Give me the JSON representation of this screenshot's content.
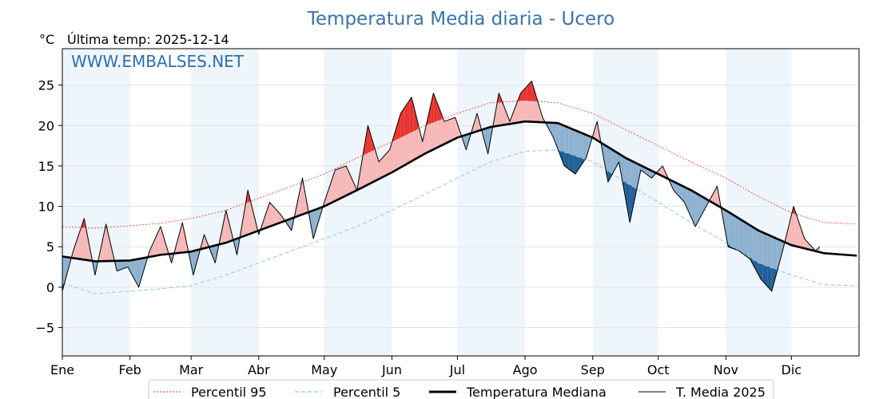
{
  "chart_data": {
    "type": "line",
    "title": "Temperatura Media diaria - Ucero",
    "unit_label": "°C",
    "last_temp_label": "Última temp: 2025-12-14",
    "watermark": "WWW.EMBALSES.NET",
    "ylim": [
      -8.5,
      29.5
    ],
    "yticks": [
      -5,
      0,
      5,
      10,
      15,
      20,
      25
    ],
    "months": [
      "Ene",
      "Feb",
      "Mar",
      "Abr",
      "May",
      "Jun",
      "Jul",
      "Ago",
      "Sep",
      "Oct",
      "Nov",
      "Dic"
    ],
    "grid": true,
    "legend_position": "bottom",
    "colors": {
      "p95": "#e8322e",
      "p5": "#8ec9dd",
      "median": "#000000",
      "year": "#000000",
      "above_fill": "#f6b7b7",
      "above_extreme": "#e8322e",
      "below_fill": "#8cb0cf",
      "below_extreme": "#1f5f96",
      "month_shade": "#eef5fb"
    },
    "series": [
      {
        "name": "Percentil 95",
        "key": "p95",
        "x": [
          0,
          15,
          31,
          45,
          59,
          75,
          90,
          105,
          120,
          135,
          151,
          166,
          181,
          196,
          212,
          227,
          243,
          258,
          273,
          288,
          304,
          319,
          334,
          349,
          364
        ],
        "values": [
          7.5,
          7.3,
          7.6,
          7.9,
          8.5,
          9.5,
          11,
          12.5,
          14,
          16,
          18,
          20,
          21.5,
          22.8,
          23.1,
          22.8,
          21.5,
          19.5,
          17.5,
          15.5,
          13.5,
          11.2,
          9.2,
          8,
          7.8
        ]
      },
      {
        "name": "Percentil 5",
        "key": "p5",
        "x": [
          0,
          15,
          31,
          45,
          59,
          75,
          90,
          105,
          120,
          135,
          151,
          166,
          181,
          196,
          212,
          227,
          243,
          258,
          273,
          288,
          304,
          319,
          334,
          349,
          364
        ],
        "values": [
          0.5,
          -0.8,
          -0.5,
          -0.2,
          0.2,
          1.5,
          3,
          4.5,
          6,
          7.5,
          9.5,
          11.5,
          13.5,
          15.5,
          16.8,
          17,
          15.5,
          13,
          10.5,
          8,
          5.5,
          3,
          1.5,
          0.3,
          0.2
        ]
      },
      {
        "name": "Temperatura Mediana",
        "key": "median",
        "x": [
          0,
          15,
          31,
          45,
          59,
          75,
          90,
          105,
          120,
          135,
          151,
          166,
          181,
          196,
          212,
          227,
          243,
          258,
          273,
          288,
          304,
          319,
          334,
          349,
          364
        ],
        "values": [
          3.8,
          3.2,
          3.3,
          4.0,
          4.4,
          5.5,
          7.0,
          8.5,
          10.0,
          12.0,
          14.2,
          16.5,
          18.5,
          19.8,
          20.5,
          20.3,
          18.5,
          16.0,
          14.0,
          12.0,
          9.5,
          7.0,
          5.2,
          4.2,
          3.9
        ]
      },
      {
        "name": "T. Media 2025",
        "key": "year",
        "x": [
          0,
          5,
          10,
          15,
          20,
          25,
          30,
          35,
          40,
          45,
          50,
          55,
          60,
          65,
          70,
          75,
          80,
          85,
          90,
          95,
          100,
          105,
          110,
          115,
          120,
          125,
          130,
          135,
          140,
          145,
          150,
          155,
          160,
          165,
          170,
          175,
          180,
          185,
          190,
          195,
          200,
          205,
          210,
          215,
          220,
          225,
          230,
          235,
          240,
          245,
          250,
          255,
          260,
          265,
          270,
          275,
          280,
          285,
          290,
          295,
          300,
          305,
          310,
          315,
          320,
          325,
          330,
          335,
          340,
          345,
          347
        ],
        "values": [
          -0.5,
          4.5,
          8.5,
          1.5,
          7.8,
          2.0,
          2.5,
          0.0,
          4.5,
          7.5,
          3.0,
          8.0,
          1.5,
          6.5,
          3.0,
          9.5,
          4.0,
          12.0,
          6.5,
          10.5,
          9.0,
          7.0,
          13.5,
          6.0,
          10.5,
          14.5,
          15.0,
          12.0,
          20.0,
          15.5,
          17.0,
          21.5,
          23.5,
          18.0,
          24.0,
          20.5,
          21.0,
          17.0,
          21.5,
          16.5,
          24.0,
          20.5,
          24.0,
          25.5,
          21.0,
          18.5,
          15.0,
          14.0,
          16.0,
          20.5,
          13.0,
          15.5,
          8.0,
          14.5,
          13.5,
          15.0,
          12.0,
          10.5,
          7.5,
          10.0,
          12.5,
          5.0,
          4.5,
          3.5,
          1.0,
          -0.5,
          4.5,
          10.0,
          6.0,
          4.5,
          5.0
        ]
      }
    ]
  }
}
